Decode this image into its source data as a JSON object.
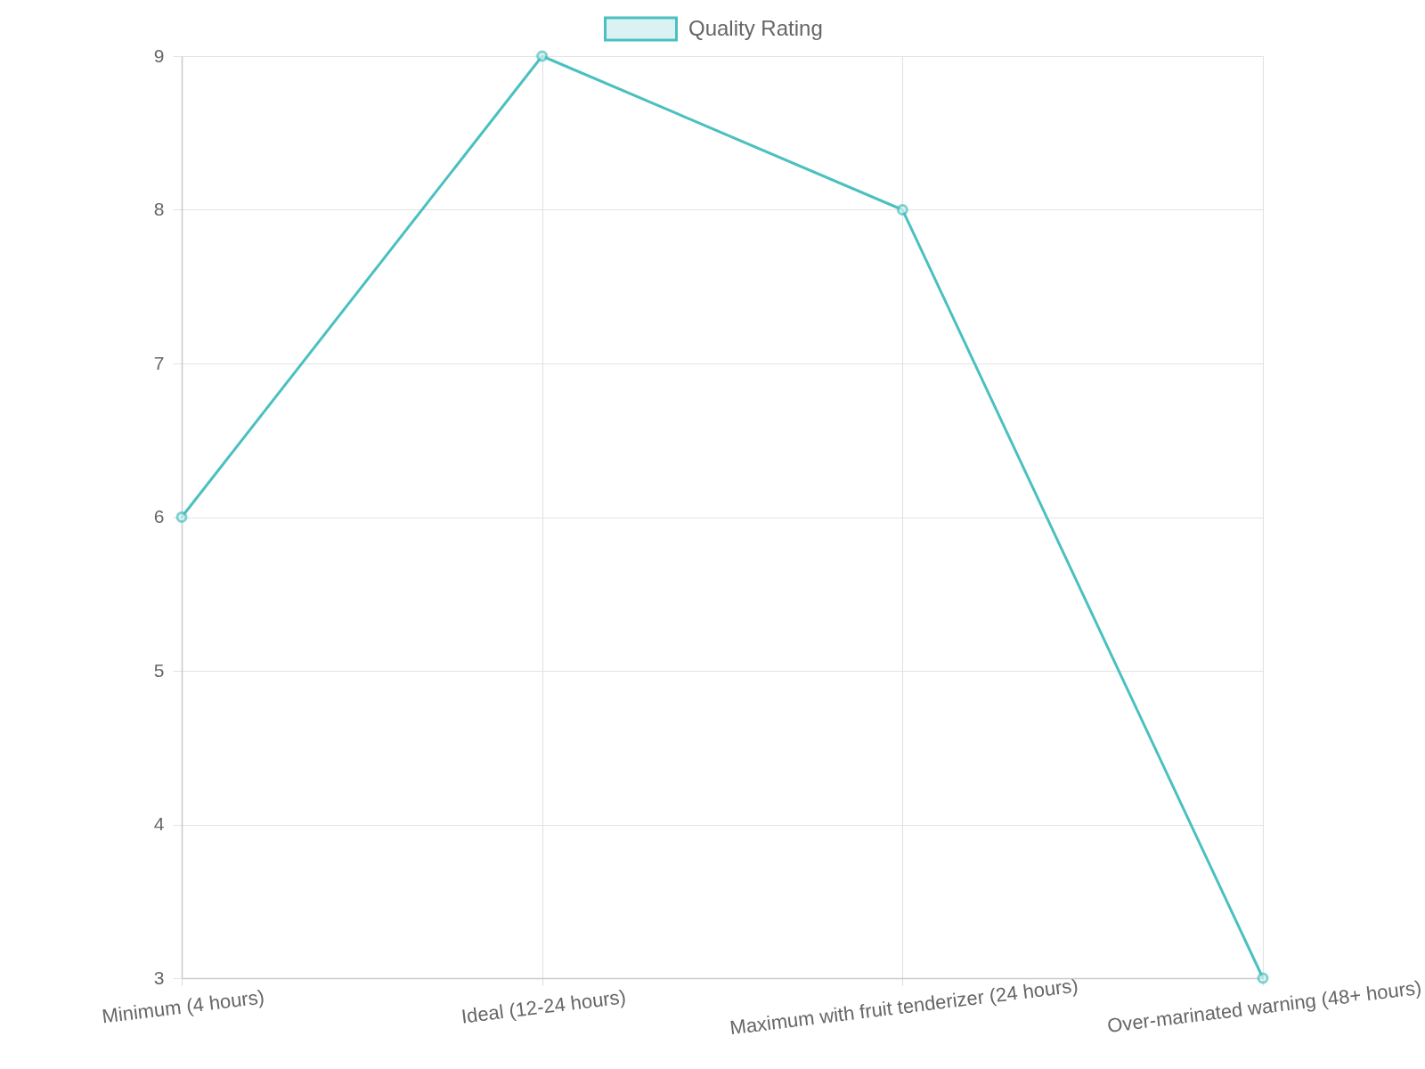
{
  "chart_data": {
    "type": "line",
    "categories": [
      "Minimum (4 hours)",
      "Ideal (12-24 hours)",
      "Maximum with fruit tenderizer (24 hours)",
      "Over-marinated warning (48+ hours)"
    ],
    "series": [
      {
        "name": "Quality Rating",
        "color": "#4bc0c0",
        "values": [
          6,
          9,
          8,
          3
        ]
      }
    ],
    "ylim": [
      3,
      9
    ],
    "yticks": [
      3,
      4,
      5,
      6,
      7,
      8,
      9
    ],
    "grid": true,
    "legend": "top",
    "marker": "circle",
    "line_style": "solid"
  }
}
